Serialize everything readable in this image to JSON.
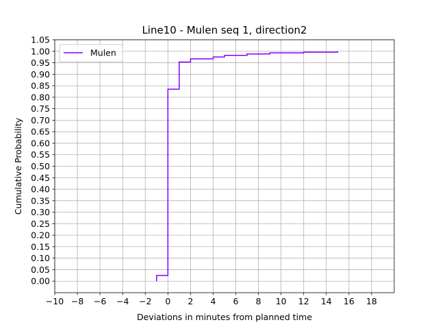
{
  "chart_data": {
    "type": "line",
    "title": "Line10 - Mulen seq 1, direction2",
    "xlabel": "Deviations in minutes from planned time",
    "ylabel": "Cumulative Probability",
    "xlim": [
      -10,
      20
    ],
    "ylim": [
      -0.05,
      1.05
    ],
    "xticks": [
      -10,
      -8,
      -6,
      -4,
      -2,
      0,
      2,
      4,
      6,
      8,
      10,
      12,
      14,
      16,
      18
    ],
    "xtick_labels": [
      "−10",
      "−8",
      "−6",
      "−4",
      "−2",
      "0",
      "2",
      "4",
      "6",
      "8",
      "10",
      "12",
      "14",
      "16",
      "18"
    ],
    "yticks": [
      0.0,
      0.05,
      0.1,
      0.15,
      0.2,
      0.25,
      0.3,
      0.35,
      0.4,
      0.45,
      0.5,
      0.55,
      0.6,
      0.65,
      0.7,
      0.75,
      0.8,
      0.85,
      0.9,
      0.95,
      1.0,
      1.05
    ],
    "ytick_labels": [
      "0.00",
      "0.05",
      "0.10",
      "0.15",
      "0.20",
      "0.25",
      "0.30",
      "0.35",
      "0.40",
      "0.45",
      "0.50",
      "0.55",
      "0.60",
      "0.65",
      "0.70",
      "0.75",
      "0.80",
      "0.85",
      "0.90",
      "0.95",
      "1.00",
      "1.05"
    ],
    "grid": true,
    "legend_position": "top-left",
    "step": "post",
    "series": [
      {
        "name": "Mulen",
        "color": "#8000ff",
        "x": [
          -1,
          -1,
          0,
          1,
          2,
          4,
          5,
          7,
          9,
          12,
          15
        ],
        "y": [
          0.0,
          0.025,
          0.835,
          0.953,
          0.967,
          0.975,
          0.982,
          0.988,
          0.993,
          0.996,
          1.0
        ]
      }
    ]
  }
}
